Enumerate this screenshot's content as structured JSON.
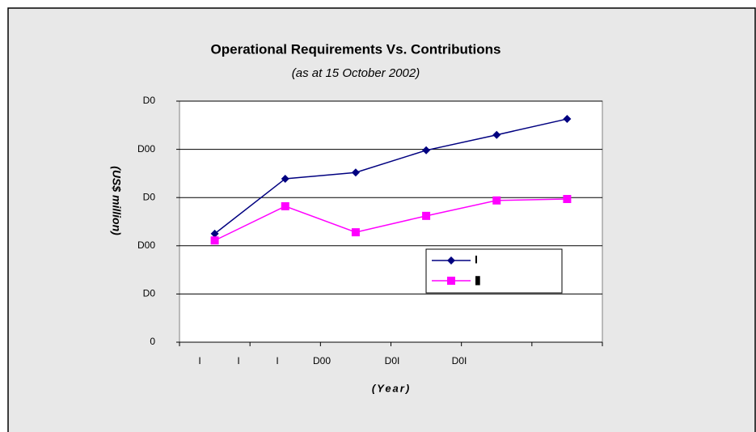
{
  "chart_data": {
    "type": "line",
    "title": "Operational Requirements Vs. Contributions",
    "subtitle": "(as at 15 October 2002)",
    "y_label": "(US$ million)",
    "x_label": "(Year)",
    "categories": [
      "I",
      "I",
      "I",
      "D00",
      "D0I",
      "D0I"
    ],
    "series": [
      {
        "name": "I",
        "color": "#000080",
        "marker": "diamond",
        "values": [
          1125,
          1695,
          1760,
          1990,
          2150,
          2315
        ]
      },
      {
        "name": "▮",
        "color": "#ff00ff",
        "marker": "square",
        "values": [
          1055,
          1410,
          1140,
          1310,
          1470,
          1485
        ]
      }
    ],
    "ylim": [
      0,
      2500
    ],
    "yticks": [
      0,
      {
        "value": 500,
        "label": "D0"
      },
      {
        "value": 1000,
        "label": "D00"
      },
      {
        "value": 1500,
        "label": "D0"
      },
      {
        "value": 2000,
        "label": "D00"
      },
      {
        "value": 2500,
        "label": "D0"
      }
    ],
    "grid": true
  }
}
